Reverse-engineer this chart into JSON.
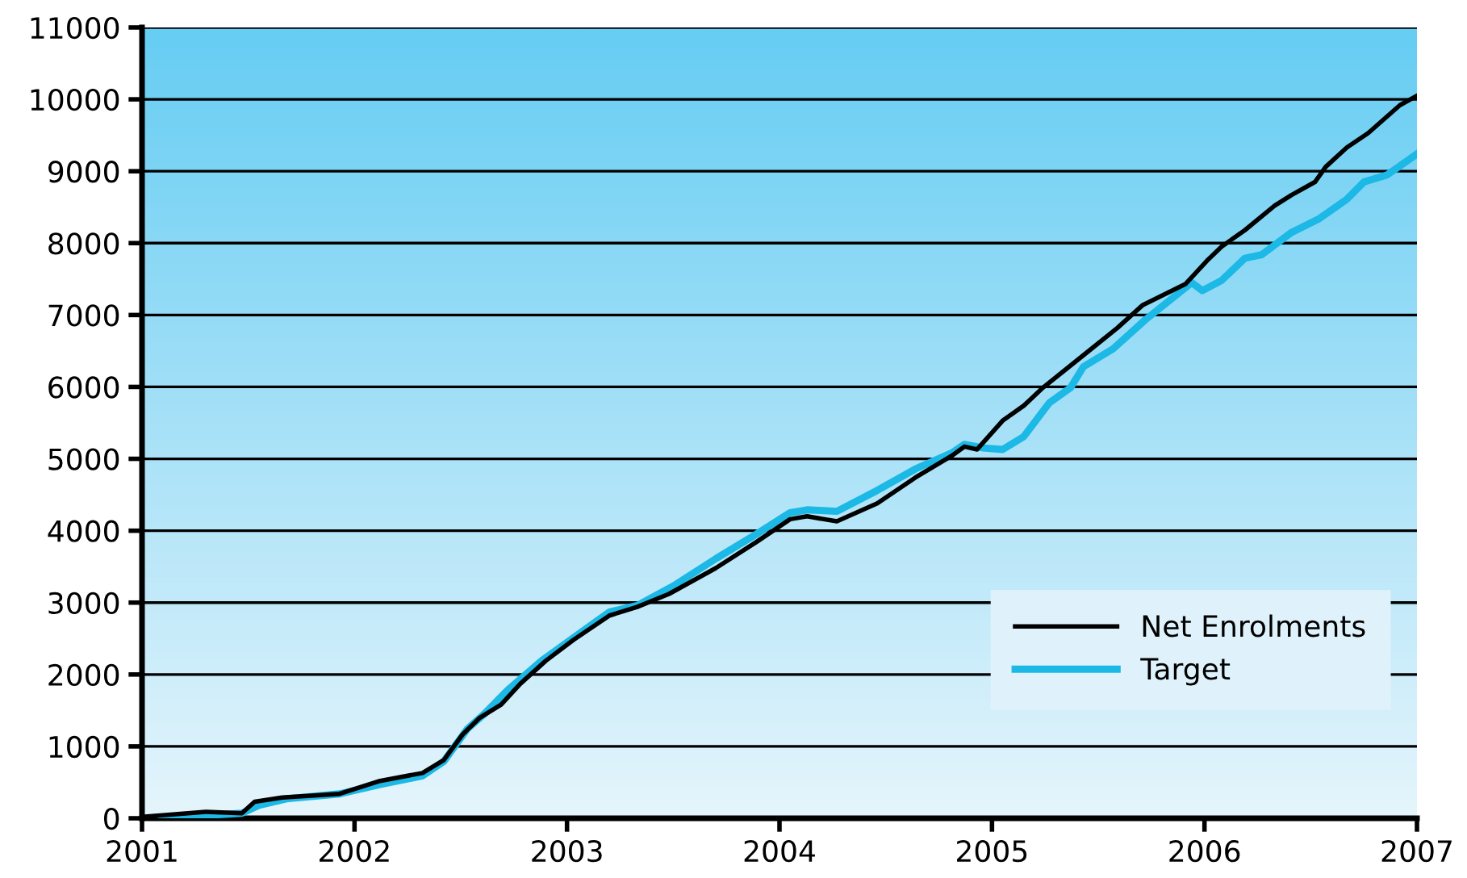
{
  "chart_data": {
    "type": "line",
    "xlim": [
      2001,
      2007
    ],
    "xticks": [
      2001,
      2002,
      2003,
      2004,
      2005,
      2006,
      2007
    ],
    "ylim": [
      0,
      11000
    ],
    "yticks": [
      0,
      1000,
      2000,
      3000,
      4000,
      5000,
      6000,
      7000,
      8000,
      9000,
      10000,
      11000
    ],
    "grid": "y",
    "legend": "bottom right",
    "marker": "none",
    "line_style": "solid",
    "series": [
      {
        "name": "Net Enrolments",
        "color": "#000000",
        "x": [
          2001.0,
          2001.3,
          2001.47,
          2001.53,
          2001.66,
          2001.93,
          2002.12,
          2002.32,
          2002.42,
          2002.51,
          2002.59,
          2002.69,
          2002.78,
          2002.9,
          2003.03,
          2003.2,
          2003.33,
          2003.48,
          2003.7,
          2003.89,
          2004.05,
          2004.13,
          2004.27,
          2004.46,
          2004.64,
          2004.81,
          2004.87,
          2004.93,
          2005.05,
          2005.15,
          2005.24,
          2005.43,
          2005.59,
          2005.71,
          2005.91,
          2006.01,
          2006.08,
          2006.19,
          2006.33,
          2006.41,
          2006.52,
          2006.57,
          2006.67,
          2006.77,
          2006.92,
          2007.0
        ],
        "values": [
          20,
          90,
          70,
          230,
          290,
          340,
          520,
          630,
          810,
          1170,
          1400,
          1580,
          1870,
          2190,
          2480,
          2820,
          2940,
          3120,
          3480,
          3840,
          4160,
          4200,
          4130,
          4380,
          4740,
          5040,
          5170,
          5130,
          5530,
          5740,
          5990,
          6440,
          6820,
          7140,
          7430,
          7750,
          7950,
          8180,
          8520,
          8670,
          8850,
          9060,
          9330,
          9530,
          9920,
          10050
        ]
      },
      {
        "name": "Target",
        "color": "#1cb8e6",
        "x": [
          2001.09,
          2001.47,
          2001.55,
          2001.68,
          2001.93,
          2002.12,
          2002.32,
          2002.42,
          2002.53,
          2002.61,
          2002.72,
          2002.88,
          2003.03,
          2003.2,
          2003.33,
          2003.5,
          2003.7,
          2003.89,
          2004.05,
          2004.13,
          2004.27,
          2004.46,
          2004.64,
          2004.81,
          2004.87,
          2004.96,
          2005.05,
          2005.15,
          2005.27,
          2005.37,
          2005.43,
          2005.57,
          2005.72,
          2005.94,
          2005.99,
          2006.08,
          2006.19,
          2006.27,
          2006.41,
          2006.54,
          2006.67,
          2006.75,
          2006.86,
          2007.0
        ],
        "values": [
          0,
          70,
          180,
          270,
          340,
          470,
          590,
          790,
          1240,
          1450,
          1780,
          2190,
          2510,
          2870,
          2960,
          3230,
          3610,
          3950,
          4250,
          4290,
          4270,
          4560,
          4860,
          5080,
          5200,
          5150,
          5130,
          5310,
          5780,
          5990,
          6280,
          6530,
          6930,
          7450,
          7340,
          7480,
          7790,
          7840,
          8150,
          8340,
          8610,
          8850,
          8950,
          9240
        ]
      }
    ]
  }
}
